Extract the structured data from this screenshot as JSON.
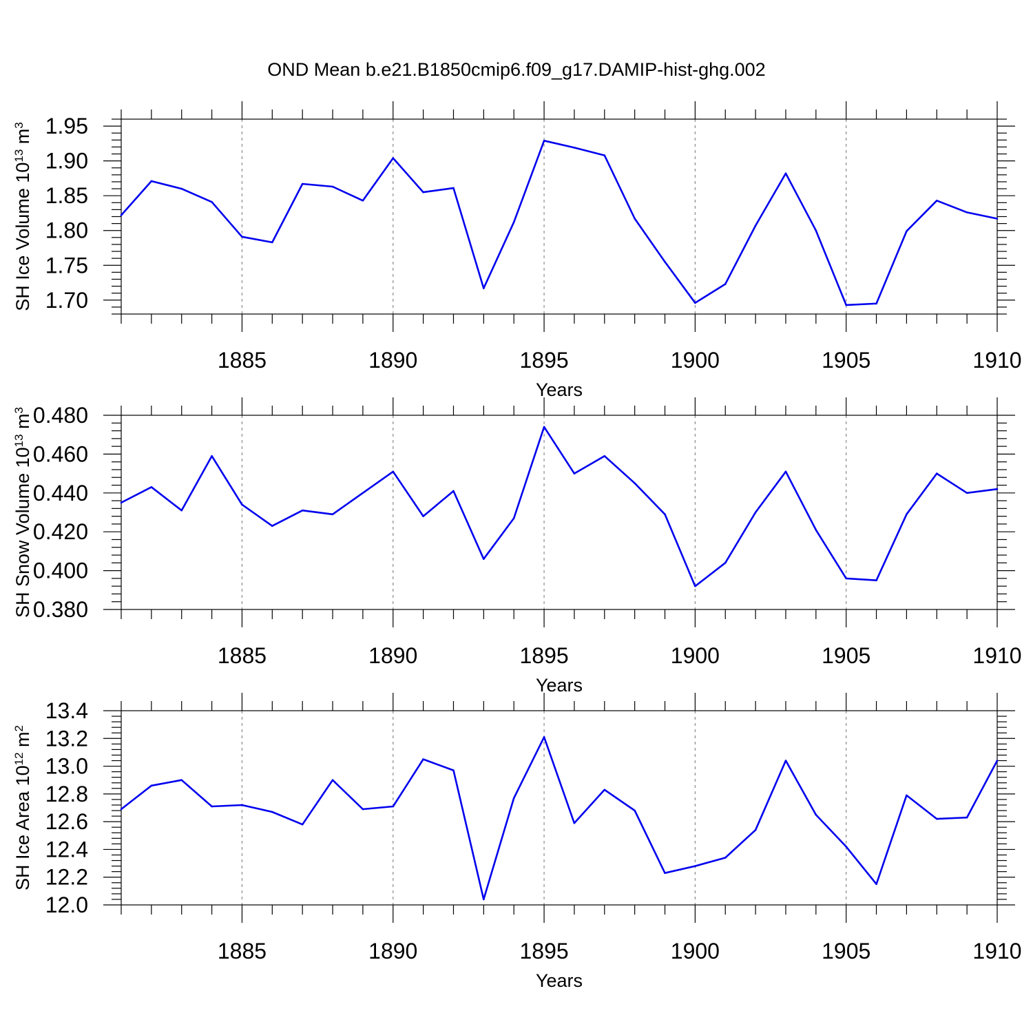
{
  "title": "OND Mean b.e21.B1850cmip6.f09_g17.DAMIP-hist-ghg.002",
  "colors": {
    "line": "#0000ee",
    "axis": "#000000",
    "grid": "#888888"
  },
  "chart_data": [
    {
      "type": "line",
      "xlabel": "Years",
      "ylabel": {
        "text": "SH Ice Volume 10",
        "exponent": "13",
        "unit": " m",
        "unit_exponent": "3"
      },
      "xlim": [
        1881,
        1910
      ],
      "ylim": [
        1.68,
        1.96
      ],
      "xticks": [
        1885,
        1890,
        1895,
        1900,
        1905,
        1910
      ],
      "xtick_labels": [
        "1885",
        "1890",
        "1895",
        "1900",
        "1905",
        "1910"
      ],
      "yticks": [
        1.7,
        1.75,
        1.8,
        1.85,
        1.9,
        1.95
      ],
      "ytick_labels": [
        "1.70",
        "1.75",
        "1.80",
        "1.85",
        "1.90",
        "1.95"
      ],
      "grid": "dashed vertical at major x ticks",
      "x": [
        1881,
        1882,
        1883,
        1884,
        1885,
        1886,
        1887,
        1888,
        1889,
        1890,
        1891,
        1892,
        1893,
        1894,
        1895,
        1896,
        1897,
        1898,
        1899,
        1900,
        1901,
        1902,
        1903,
        1904,
        1905,
        1906,
        1907,
        1908,
        1909,
        1910
      ],
      "values": [
        1.822,
        1.871,
        1.86,
        1.841,
        1.791,
        1.783,
        1.867,
        1.863,
        1.843,
        1.904,
        1.855,
        1.861,
        1.717,
        1.812,
        1.929,
        1.919,
        1.908,
        1.817,
        1.755,
        1.696,
        1.723,
        1.807,
        1.882,
        1.8,
        1.693,
        1.695,
        1.799,
        1.843,
        1.826,
        1.817
      ]
    },
    {
      "type": "line",
      "xlabel": "Years",
      "ylabel": {
        "text": "SH Snow Volume 10",
        "exponent": "13",
        "unit": " m",
        "unit_exponent": "3"
      },
      "xlim": [
        1881,
        1910
      ],
      "ylim": [
        0.38,
        0.48
      ],
      "xticks": [
        1885,
        1890,
        1895,
        1900,
        1905,
        1910
      ],
      "xtick_labels": [
        "1885",
        "1890",
        "1895",
        "1900",
        "1905",
        "1910"
      ],
      "yticks": [
        0.38,
        0.4,
        0.42,
        0.44,
        0.46,
        0.48
      ],
      "ytick_labels": [
        "0.380",
        "0.400",
        "0.420",
        "0.440",
        "0.460",
        "0.480"
      ],
      "grid": "dashed vertical at major x ticks",
      "x": [
        1881,
        1882,
        1883,
        1884,
        1885,
        1886,
        1887,
        1888,
        1889,
        1890,
        1891,
        1892,
        1893,
        1894,
        1895,
        1896,
        1897,
        1898,
        1899,
        1900,
        1901,
        1902,
        1903,
        1904,
        1905,
        1906,
        1907,
        1908,
        1909,
        1910
      ],
      "values": [
        0.435,
        0.443,
        0.431,
        0.459,
        0.434,
        0.423,
        0.431,
        0.429,
        0.44,
        0.451,
        0.428,
        0.441,
        0.406,
        0.427,
        0.474,
        0.45,
        0.459,
        0.445,
        0.429,
        0.392,
        0.404,
        0.43,
        0.451,
        0.421,
        0.396,
        0.395,
        0.429,
        0.45,
        0.44,
        0.442
      ]
    },
    {
      "type": "line",
      "xlabel": "Years",
      "ylabel": {
        "text": "SH Ice Area 10",
        "exponent": "12",
        "unit": " m",
        "unit_exponent": "2"
      },
      "xlim": [
        1881,
        1910
      ],
      "ylim": [
        12.0,
        13.4
      ],
      "xticks": [
        1885,
        1890,
        1895,
        1900,
        1905,
        1910
      ],
      "xtick_labels": [
        "1885",
        "1890",
        "1895",
        "1900",
        "1905",
        "1910"
      ],
      "yticks": [
        12.0,
        12.2,
        12.4,
        12.6,
        12.8,
        13.0,
        13.2,
        13.4
      ],
      "ytick_labels": [
        "12.0",
        "12.2",
        "12.4",
        "12.6",
        "12.8",
        "13.0",
        "13.2",
        "13.4"
      ],
      "grid": "dashed vertical at major x ticks",
      "x": [
        1881,
        1882,
        1883,
        1884,
        1885,
        1886,
        1887,
        1888,
        1889,
        1890,
        1891,
        1892,
        1893,
        1894,
        1895,
        1896,
        1897,
        1898,
        1899,
        1900,
        1901,
        1902,
        1903,
        1904,
        1905,
        1906,
        1907,
        1908,
        1909,
        1910
      ],
      "values": [
        12.69,
        12.86,
        12.9,
        12.71,
        12.72,
        12.67,
        12.58,
        12.9,
        12.69,
        12.71,
        13.05,
        12.97,
        12.04,
        12.77,
        13.21,
        12.59,
        12.83,
        12.68,
        12.23,
        12.28,
        12.34,
        12.54,
        13.04,
        12.65,
        12.42,
        12.15,
        12.79,
        12.62,
        12.63,
        13.04
      ]
    }
  ]
}
